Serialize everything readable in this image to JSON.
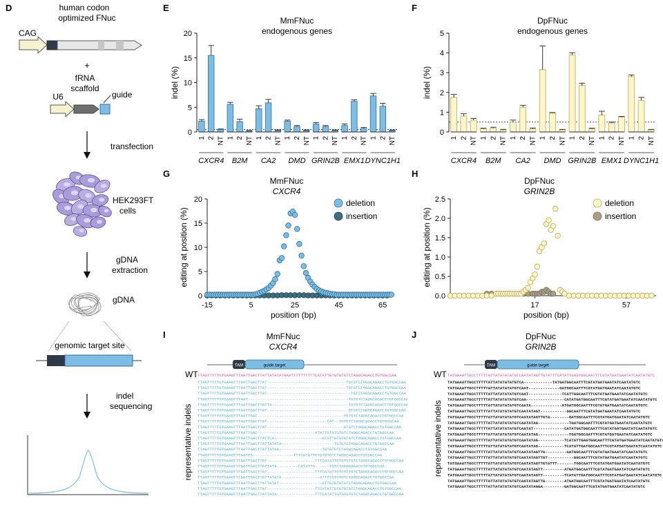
{
  "panel_d": {
    "letter": "D",
    "cag": "CAG",
    "fnuc_label_1": "human codon",
    "fnuc_label_2": "optimized FNuc",
    "plus": "+",
    "frna_1": "fRNA",
    "frna_2": "scaffold",
    "guide": "guide",
    "u6": "U6",
    "transfection": "transfection",
    "cells_1": "HEK293FT",
    "cells_2": "cells",
    "gdna_ext_1": "gDNA",
    "gdna_ext_2": "extraction",
    "gdna": "gDNA",
    "target_site": "genomic target site",
    "indel_seq_1": "indel",
    "indel_seq_2": "sequencing"
  },
  "colors": {
    "blue": "#7dbde3",
    "blue_edge": "#2a6f98",
    "yellow": "#fdf6c8",
    "yellow_edge": "#b8a652",
    "dark_teal": "#3a6f80",
    "olive": "#a89f84",
    "wt_red": "#e0478a",
    "seq_blue": "#4aa8d8",
    "cell": "#9d8fd0"
  },
  "chart_data": [
    {
      "panel": "E",
      "type": "bar",
      "title": "MmFNuc",
      "subtitle": "endogenous genes",
      "ylabel": "indel (%)",
      "ylim": [
        0,
        20
      ],
      "yticks": [
        0,
        5,
        10,
        15,
        20
      ],
      "threshold": 0.5,
      "categories": [
        "1",
        "2",
        "NT",
        "1",
        "2",
        "NT",
        "1",
        "2",
        "NT",
        "1",
        "2",
        "NT",
        "1",
        "2",
        "NT",
        "1",
        "2",
        "NT",
        "1",
        "2",
        "NT"
      ],
      "genes": [
        "CXCR4",
        "B2M",
        "CA2",
        "DMD",
        "GRIN2B",
        "EMX1",
        "DYNC1H1"
      ],
      "values": [
        2.2,
        15.5,
        0.5,
        5.6,
        2.1,
        0.2,
        4.7,
        5.9,
        0.3,
        2.2,
        1.1,
        0.3,
        1.6,
        1.1,
        0.3,
        1.3,
        6.2,
        0.7,
        7.3,
        5.2,
        0.3
      ],
      "errors": [
        0.3,
        2.0,
        0.1,
        0.4,
        0.5,
        0.1,
        0.6,
        0.7,
        0.1,
        0.2,
        0.2,
        0.1,
        0.3,
        0.2,
        0.1,
        0.3,
        0.3,
        0.2,
        0.5,
        0.6,
        0.1
      ]
    },
    {
      "panel": "F",
      "type": "bar",
      "title": "DpFNuc",
      "subtitle": "endogenous genes",
      "ylabel": "indel (%)",
      "ylim": [
        0,
        5
      ],
      "yticks": [
        0,
        1,
        2,
        3,
        4,
        5
      ],
      "threshold": 0.5,
      "categories": [
        "1",
        "2",
        "NT",
        "1",
        "2",
        "NT",
        "1",
        "2",
        "NT",
        "1",
        "2",
        "NT",
        "1",
        "2",
        "NT",
        "1",
        "2",
        "NT",
        "1",
        "2",
        "NT"
      ],
      "genes": [
        "CXCR4",
        "B2M",
        "CA2",
        "DMD",
        "GRIN2B",
        "EMX1",
        "DYNC1H1"
      ],
      "values": [
        1.75,
        0.8,
        0.6,
        0.15,
        0.2,
        0.1,
        0.5,
        1.25,
        0.15,
        3.15,
        0.95,
        0.1,
        3.9,
        2.35,
        0.15,
        0.85,
        0.45,
        0.75,
        2.8,
        1.6,
        0.1
      ],
      "errors": [
        0.15,
        0.12,
        0.08,
        0.04,
        0.04,
        0.03,
        0.1,
        0.1,
        0.05,
        1.2,
        0.03,
        0.03,
        0.1,
        0.12,
        0.04,
        0.2,
        0.05,
        0.04,
        0.08,
        0.15,
        0.03
      ]
    },
    {
      "panel": "G",
      "type": "scatter",
      "title": "MmFNuc",
      "subtitle": "CXCR4",
      "xlabel": "position (bp)",
      "ylabel": "editing at position (%)",
      "xlim": [
        -15,
        70
      ],
      "ylim": [
        0,
        20
      ],
      "xticks": [
        -15,
        5,
        25,
        45,
        65
      ],
      "yticks": [
        0,
        5,
        10,
        15,
        20
      ],
      "legend": [
        "deletion",
        "insertion"
      ],
      "series": [
        {
          "name": "deletion",
          "x": [
            -15,
            -14,
            -13,
            -12,
            -11,
            -10,
            -9,
            -8,
            -7,
            -6,
            -5,
            -4,
            -3,
            -2,
            -1,
            0,
            1,
            2,
            3,
            4,
            5,
            6,
            7,
            8,
            9,
            10,
            11,
            12,
            13,
            14,
            15,
            16,
            17,
            18,
            19,
            20,
            21,
            22,
            23,
            24,
            25,
            26,
            27,
            28,
            29,
            30,
            31,
            32,
            33,
            34,
            35,
            36,
            37,
            38,
            39,
            40,
            41,
            42,
            43,
            44,
            45,
            46,
            47,
            48,
            49,
            50,
            51,
            52,
            53,
            54,
            55,
            56,
            57,
            58,
            59,
            60,
            61,
            62,
            63,
            64,
            65,
            66,
            67,
            68,
            69
          ],
          "y": [
            0.2,
            0.2,
            0.2,
            0.2,
            0.2,
            0.2,
            0.2,
            0.2,
            0.2,
            0.2,
            0.2,
            0.2,
            0.2,
            0.2,
            0.2,
            0.2,
            0.2,
            0.2,
            0.2,
            0.2,
            0.2,
            0.2,
            0.3,
            0.4,
            0.6,
            0.8,
            1.0,
            1.3,
            1.6,
            2.1,
            2.6,
            3.4,
            4.5,
            7.3,
            7.8,
            10.2,
            12.5,
            14.5,
            17.0,
            17.4,
            16.7,
            13.8,
            10.7,
            8.3,
            6.1,
            4.7,
            3.7,
            2.9,
            2.3,
            1.8,
            1.4,
            1.1,
            0.9,
            0.7,
            0.6,
            0.5,
            0.4,
            0.3,
            0.3,
            0.2,
            0.2,
            0.2,
            0.2,
            0.2,
            0.2,
            0.2,
            0.2,
            0.2,
            0.2,
            0.2,
            0.2,
            0.2,
            0.2,
            0.2,
            0.2,
            0.2,
            0.2,
            0.2,
            0.2,
            0.2,
            0.2,
            0.2,
            0.2,
            0.2,
            0.2
          ]
        },
        {
          "name": "insertion",
          "x": [
            -15,
            -13,
            -11,
            -9,
            -7,
            -5,
            -3,
            -1,
            1,
            3,
            5,
            7,
            9,
            11,
            13,
            15,
            17,
            19,
            21,
            23,
            25,
            27,
            29,
            31,
            33,
            35,
            37,
            39,
            41,
            43,
            45,
            47,
            49,
            51,
            53,
            55,
            57,
            59,
            61,
            63,
            65,
            67
          ],
          "y": [
            0.05,
            0.05,
            0.05,
            0.05,
            0.05,
            0.05,
            0.05,
            0.05,
            0.05,
            0.05,
            0.05,
            0.05,
            0.05,
            0.05,
            0.05,
            0.05,
            0.05,
            0.1,
            0.1,
            0.1,
            0.1,
            0.1,
            0.1,
            0.05,
            0.05,
            0.05,
            0.05,
            0.05,
            0.05,
            0.05,
            0.05,
            0.05,
            0.05,
            0.05,
            0.05,
            0.05,
            0.05,
            0.05,
            0.05,
            0.05,
            0.05,
            0.05
          ]
        }
      ]
    },
    {
      "panel": "H",
      "type": "scatter",
      "title": "DpFNuc",
      "subtitle": "GRIN2B",
      "xlabel": "position (bp)",
      "ylabel": "editing at position (%)",
      "xlim": [
        -20,
        70
      ],
      "ylim": [
        0,
        2.5
      ],
      "xticks": [
        17,
        57
      ],
      "yticks": [
        0.0,
        0.5,
        1.0,
        1.5,
        2.0,
        2.5
      ],
      "legend": [
        "deletion",
        "insertion"
      ],
      "series": [
        {
          "name": "deletion",
          "x": [
            -20,
            -18,
            -16,
            -14,
            -12,
            -10,
            -8,
            -6,
            -4,
            -2,
            0,
            1,
            2,
            3,
            4,
            5,
            6,
            7,
            8,
            9,
            10,
            11,
            12,
            13,
            14,
            15,
            16,
            17,
            18,
            19,
            20,
            21,
            22,
            23,
            24,
            25,
            26,
            27,
            28,
            29,
            30,
            32,
            34,
            36,
            38,
            40,
            42,
            44,
            46,
            48,
            50,
            52,
            54,
            56,
            58,
            60,
            62,
            64,
            66,
            68
          ],
          "y": [
            0.0,
            0.0,
            0.0,
            0.0,
            0.0,
            0.0,
            0.0,
            0.0,
            0.0,
            0.0,
            0.05,
            0.05,
            0.05,
            0.05,
            0.05,
            0.05,
            0.05,
            0.05,
            0.05,
            0.05,
            0.05,
            0.05,
            0.1,
            0.15,
            0.2,
            0.35,
            0.45,
            0.55,
            0.75,
            1.15,
            1.25,
            1.35,
            1.85,
            1.95,
            1.7,
            1.8,
            2.25,
            1.55,
            0.15,
            0.1,
            0.05,
            0.0,
            0.0,
            0.0,
            0.0,
            0.0,
            0.0,
            0.0,
            0.0,
            0.0,
            0.0,
            0.0,
            0.0,
            0.0,
            0.0,
            0.0,
            0.0,
            0.0,
            0.0,
            0.0
          ]
        },
        {
          "name": "insertion",
          "x": [
            -4,
            -2,
            0,
            2,
            4,
            6,
            8,
            10,
            12,
            14,
            16,
            17,
            18,
            19,
            20,
            21,
            22,
            23,
            24,
            25
          ],
          "y": [
            0.05,
            0.05,
            0.05,
            0.05,
            0.05,
            0.05,
            0.05,
            0.05,
            0.05,
            0.05,
            0.05,
            0.05,
            0.05,
            0.05,
            0.1,
            0.1,
            0.15,
            0.1,
            0.05,
            0.05
          ]
        }
      ]
    }
  ],
  "panel_i": {
    "letter": "I",
    "title": "MmFNuc",
    "subtitle": "CXCR4",
    "tam": "TAM",
    "guide_target": "guide target",
    "wt_label": "WT",
    "ylabel": "representative indels",
    "wt_seq": "TTAGTTTTTGTGAAGTTTAATTGACTTATTATATATAAATTTTTTTTTTCATATTGTGTGTGTCTAGGCAGACCTGTGGCCAA",
    "rows": [
      "TTAGTTTTTGTGAAGTTTAATTGACTTAT---------------------------------TGTGTCTAGGCAGACCTGTGGCCAA",
      "TTAGTTTTTGTGAAGTTTAATTGACTTAT---------------------------------TGTGTCTAGGCAGACCTGTGGCCAA",
      "TTAGTTTTTGTGAAGTTTAATTGACTTAT-----------------------------------TGTCTAGGCAGACCTGTGGCCAA",
      "TTAGTTTTTGTGAAGTTTAAT------------------------------------------TGTGTCTAGGCAGACCTGTGGCCAA",
      "TTAGTTTTTGTGAAGTTTAATTGACTTATTA--------------------------------TGTGTCTAGGCAGACCTGTGGCCAA",
      "TTAGTTTTTGTGAAGTTTAATTGACTTAT----------------------------------GTGTCTAGGCAGACCTGTGGCCAA",
      "TTAGTTTTTGTGAAGTTTAATTGAC------------------------------------TGTGTCTAGGCAGACCTGTGGCCAA",
      "TTAGTTTTTGTGAAGTTTAATTGACTTAT-------------------------CAT--TGTGTCTAGGCAGACCTGTGGCCAA",
      "TTAGTTTTTGTGAAGTTTAATTGACTTAT--------------------------------GTGTCTAGGCAGACCTGTGGCCAA",
      "TTAGTTTTTGTGAAGTTTAATTGAC------------------------ATATTGTGTGTGTCTAGGCAGACCTGTGGCCAA",
      "TTAGTTTTTGTGAAGTTTAATTGACTTATTCA--------------------ATATTGTGTGTGTCTAGGCAGACCTGTGGCCAA",
      "TTAGTTTTTGTGAAGTTTAATTGACTTATTATATA----------------------TGTGTCTAGGCAGACCTGTGGCCAA",
      "TTAGTTTTTGTGAAGTTTAATTGACTTATTATAA------------------TGTGTGTCTAGGCAGACCTGTGGCCAA",
      "TTAGTTTTTGTGAAGTTTAATTG-----------------TTTCATATTGTGTGTGTCTAGGCAGACCTGTGGCCAA",
      "TTAGTTTTTGTGAAGTTTAATTGACTTAT--------------------TTTCATATTGTGTGTGTCTAGGCAGACCTGTGGCCAA",
      "TTAGTTTTTGTGAAGTTTAATTGACTTATTATA---------CATATTG------TGTCTAGGCAGACCTGTGGCCAA",
      "TTAGTTTTTGTGAAGTTTAATTGACTTAT--------------------TTTCATATTGTGTGTGTCTAGGCAGACCTGTGGCCAA",
      "TTAGTTTTTGTGAAGTTTAATTGACTTATTATATA----------------ATTGTGTGTGTCTAGGCAGACCTGTGGCCAA",
      "TTAGTTTTTGTGAAGTTTAATTGACTTATTATAT------------------ATTGTGTGTGTCTAGGCAGACCTGTGGCCAA",
      "TTAGTTTTTGTGAAGTTTAATTGACTTAT--------------------TTCATATTGTGTGTGTCTAGGCAGACCTGTGGCCAA",
      "TTAGTTTTTGTGAAGTTTAATTGACTTATTATA----------------TTTCATATTGTGTGTGTCTAGGCAGACCTGTGGCCAA"
    ]
  },
  "panel_j": {
    "letter": "J",
    "title": "DpFNuc",
    "subtitle": "GRIN2B",
    "tam": "TAM",
    "guide_target": "guide target",
    "wt_label": "WT",
    "ylabel": "representative indels",
    "wt_seq": "TATGAAATTGCCTTTTTATTATATATATGTCAATATAGTTGTATTTCATATTGAGTGGCAATTTCGTATGATGAATATCAATATGTC",
    "rows": [
      "TATGAAATTGCCTTTTTATTATATATATGTCA------------TATGATGGCAATTTCGTATGATGAATATCAATATGTC",
      "TATGAAATTGCCTTTTTATTATATATATGTCAAT-------------GATGGCAATTTCGTATGATGAATATCAATATGTC",
      "TATGAAATTGCCTTTTTATTATATATATGTCAAT--------------TCATTGGCAATTTCGTATGATGAATATCAATATGTC",
      "TATGAAATTGCCTTTTTATTATATATATGTCAA----------------CATATGATGGCAATTTCGTATGATGAATATCAATATGTC",
      "TATGAAATTGCCTTTTTATTATATATATGTCAATA-------------ATGATGGCAATTTCGTATGATGAATATCAATATGTC",
      "TATGAAATTGCCTTTTTATTATATATATGTCAATATAGT-----------GGCAATTTCGTATGATGAATATCAATATGTC",
      "TATGAAATTGCCTTTTTATTATATATATGTCAATATAGTTGTA--------GATGGCAATTTCGTATGATGAATATCAATATGTC",
      "TATGAAATTGCCTTTTTATTATATATATGTCAATATAG-------------TGATGGCAATTTCGTATGATGAATATCAATATGTC",
      "TATGAAATTGCCTTTTTATTATATATATGTCAATAT-------------CATATGATGGCAATTTCGTATGATGAATATCAATATGTC",
      "TATGAAATTGCCTTTTTATTATATATATGTCAATATAG-------------TGATGGCAATTTCGTATGATGAATATCAATATGTC",
      "TATGAAATTGCCTTTTTATTATATATATGTCAATATAG-----------TCATATTGAGTGGCAATTTCGTATGATGAATATCAATATGTC",
      "TATGAAATTGCCTTTTTATTATATATATGTCAATATAG-----------TCATATTGATGGCAATTTCGTATGATGAATATCAATATGTC",
      "TATGAAATTGCCTTTTTATTATATATATGTCAATATAGTTG---------GATGGCAATTTCGTATGATGAATATCAATATGTC",
      "TATGAAATTGCCTTTTTATTATATATATGTCAATATAGTTGT-----------GGCAATTTCGTATGATGAATATCAATATGTC",
      "TATGAAATTGCCTTTTTATTATATATATGTCAATATAGTTGTATTT-------TGGCAATTTCGTATGATGAATATCAATATGTC",
      "TATGAAATTGCCTTTTTATTATATATATGTCAATATAGTT---------ATGATGGCAATTTCGTATGATGAATATCAATATGTC",
      "TATGAAATTGCCTTTTTATTATATATATGTCAATATAGTT---------TCATATTGATGGCAATTTCGTATGATGAATATCAATATGTC",
      "TATGAAATTGCCTTTTTATTATATATATGTCAATATAGTTG--------ATGATGGCAATTTCGTATGATGAATATCAATATGTC",
      "TATGAAATTGCCTTTTTATTATATATATGTCAATATAGGA---------GATGGCAATTTCGTATGATGAATATCAATATGTC"
    ]
  }
}
